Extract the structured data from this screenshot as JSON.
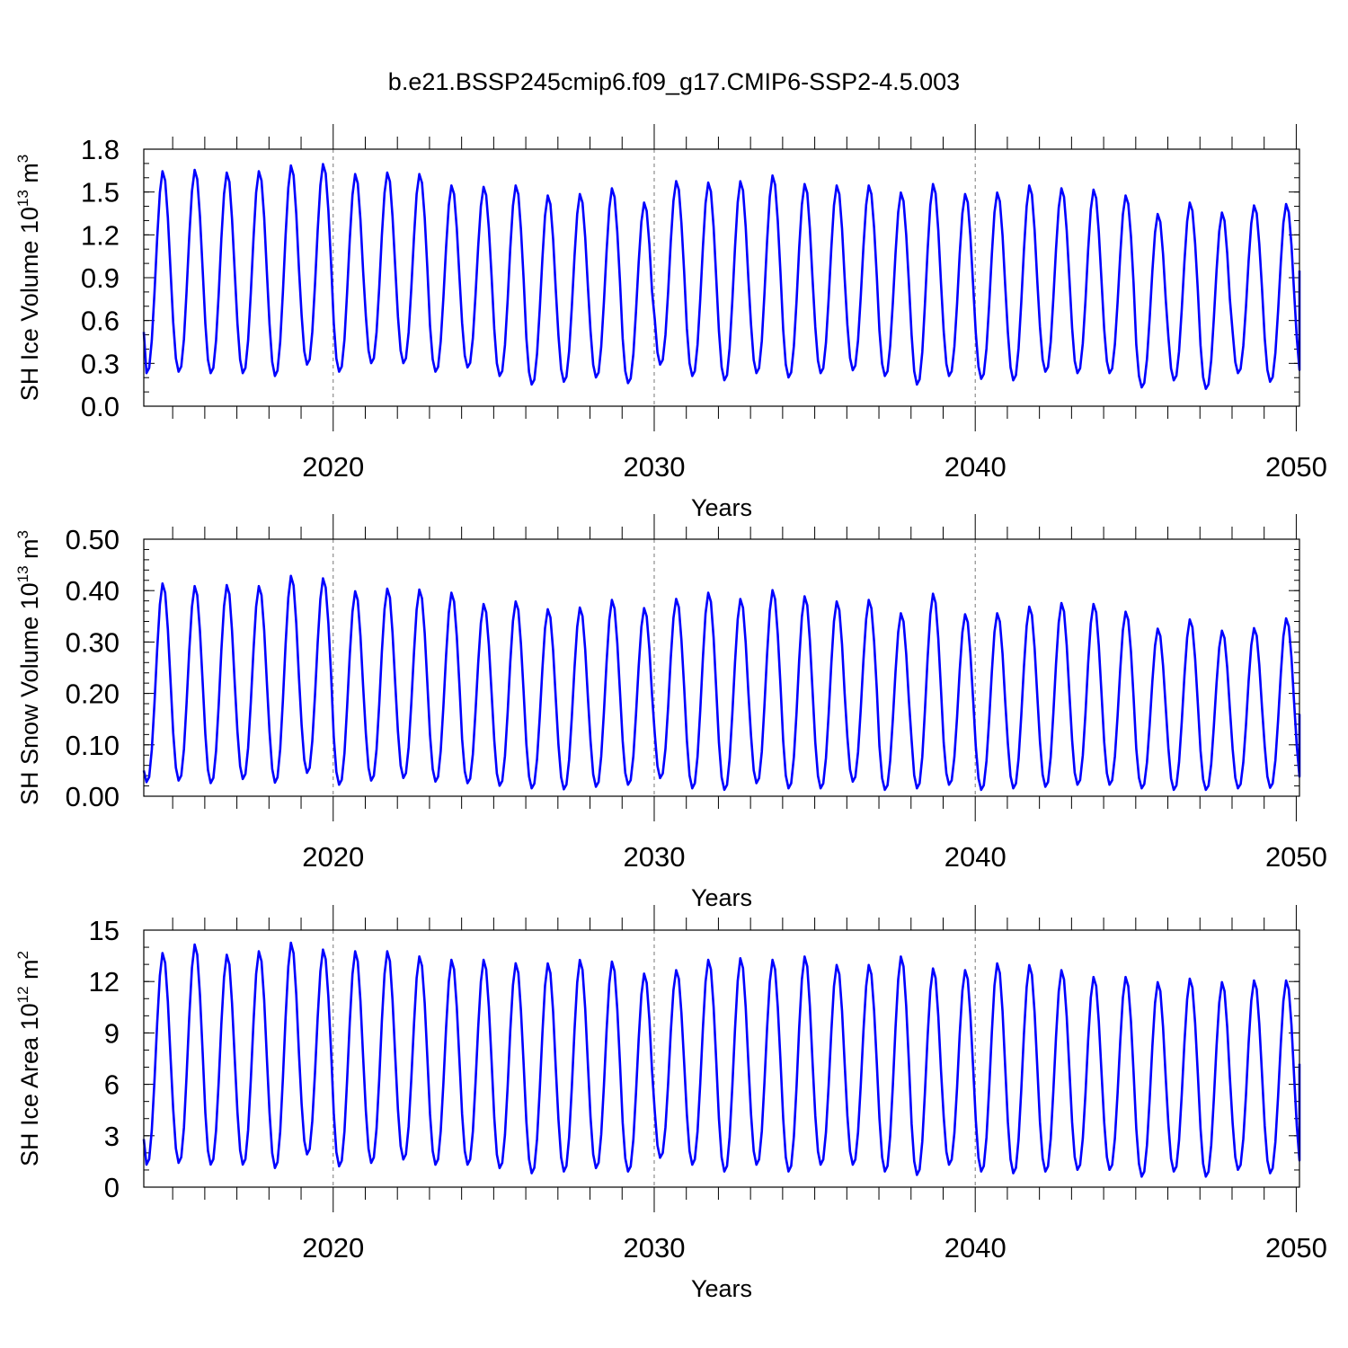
{
  "title": "b.e21.BSSP245cmip6.f09_g17.CMIP6-SSP2-4.5.003",
  "colors": {
    "series": "#0000ff",
    "axis": "#000000",
    "ref_line": "#777777"
  },
  "chart_data": [
    {
      "type": "line",
      "name": "ice-volume",
      "ylabel_main": "SH Ice Volume 10",
      "ylabel_exp": "13",
      "ylabel_unit": "m",
      "ylabel_unit_exp": "3",
      "xlabel": "Years",
      "xlim": [
        2014.1,
        2050.1
      ],
      "ylim": [
        0,
        1.8
      ],
      "yticks": [
        0,
        0.3,
        0.6,
        0.9,
        1.2,
        1.5,
        1.8
      ],
      "ytick_labels": [
        "0.0",
        "0.3",
        "0.6",
        "0.9",
        "1.2",
        "1.5",
        "1.8"
      ],
      "yminor_step": 0.1,
      "xticks": [
        2020,
        2030,
        2040,
        2050
      ],
      "xtick_labels": [
        "2020",
        "2030",
        "2040",
        "2050"
      ],
      "ref_lines_x": [
        2020,
        2030,
        2040
      ],
      "start_value": 0.52,
      "end_value": 0.95,
      "annual_min": [
        0.23,
        0.24,
        0.23,
        0.23,
        0.21,
        0.29,
        0.24,
        0.3,
        0.3,
        0.24,
        0.27,
        0.21,
        0.15,
        0.17,
        0.2,
        0.16,
        0.29,
        0.21,
        0.18,
        0.23,
        0.2,
        0.23,
        0.25,
        0.21,
        0.15,
        0.21,
        0.19,
        0.18,
        0.24,
        0.23,
        0.23,
        0.13,
        0.18,
        0.12,
        0.23,
        0.17
      ],
      "annual_max": [
        1.65,
        1.66,
        1.64,
        1.65,
        1.69,
        1.7,
        1.63,
        1.64,
        1.63,
        1.55,
        1.54,
        1.55,
        1.48,
        1.49,
        1.53,
        1.43,
        1.58,
        1.57,
        1.58,
        1.62,
        1.56,
        1.55,
        1.55,
        1.5,
        1.56,
        1.49,
        1.5,
        1.55,
        1.53,
        1.52,
        1.48,
        1.35,
        1.43,
        1.36,
        1.41,
        1.42
      ]
    },
    {
      "type": "line",
      "name": "snow-volume",
      "ylabel_main": "SH Snow Volume 10",
      "ylabel_exp": "13",
      "ylabel_unit": "m",
      "ylabel_unit_exp": "3",
      "xlabel": "Years",
      "xlim": [
        2014.1,
        2050.1
      ],
      "ylim": [
        0,
        0.5
      ],
      "yticks": [
        0,
        0.1,
        0.2,
        0.3,
        0.4,
        0.5
      ],
      "ytick_labels": [
        "0.00",
        "0.10",
        "0.20",
        "0.30",
        "0.40",
        "0.50"
      ],
      "yminor_step": 0.02,
      "xticks": [
        2020,
        2030,
        2040,
        2050
      ],
      "xtick_labels": [
        "2020",
        "2030",
        "2040",
        "2050"
      ],
      "ref_lines_x": [
        2020,
        2030,
        2040
      ],
      "start_value": 0.05,
      "end_value": 0.16,
      "annual_min": [
        0.027,
        0.03,
        0.025,
        0.033,
        0.026,
        0.045,
        0.022,
        0.03,
        0.035,
        0.028,
        0.025,
        0.02,
        0.015,
        0.013,
        0.018,
        0.022,
        0.035,
        0.015,
        0.012,
        0.025,
        0.015,
        0.015,
        0.028,
        0.012,
        0.015,
        0.022,
        0.012,
        0.015,
        0.018,
        0.022,
        0.022,
        0.015,
        0.012,
        0.012,
        0.015,
        0.016
      ],
      "annual_max": [
        0.415,
        0.41,
        0.412,
        0.41,
        0.43,
        0.425,
        0.4,
        0.405,
        0.403,
        0.397,
        0.375,
        0.38,
        0.365,
        0.368,
        0.383,
        0.367,
        0.385,
        0.397,
        0.385,
        0.402,
        0.39,
        0.38,
        0.383,
        0.357,
        0.395,
        0.355,
        0.357,
        0.37,
        0.377,
        0.375,
        0.36,
        0.327,
        0.345,
        0.323,
        0.328,
        0.347
      ]
    },
    {
      "type": "line",
      "name": "ice-area",
      "ylabel_main": "SH Ice Area 10",
      "ylabel_exp": "12",
      "ylabel_unit": "m",
      "ylabel_unit_exp": "2",
      "xlabel": "Years",
      "xlim": [
        2014.1,
        2050.1
      ],
      "ylim": [
        0,
        15
      ],
      "yticks": [
        0,
        3,
        6,
        9,
        12,
        15
      ],
      "ytick_labels": [
        "0",
        "3",
        "6",
        "9",
        "12",
        "15"
      ],
      "yminor_step": 1,
      "xticks": [
        2020,
        2030,
        2040,
        2050
      ],
      "xtick_labels": [
        "2020",
        "2030",
        "2040",
        "2050"
      ],
      "ref_lines_x": [
        2020,
        2030,
        2040
      ],
      "start_value": 2.8,
      "end_value": 7.2,
      "annual_min": [
        1.3,
        1.4,
        1.3,
        1.3,
        1.1,
        1.9,
        1.2,
        1.4,
        1.6,
        1.3,
        1.3,
        1.1,
        0.8,
        0.9,
        1.1,
        0.9,
        1.7,
        1.3,
        0.9,
        1.3,
        0.9,
        1.3,
        1.3,
        0.9,
        0.7,
        1.3,
        0.9,
        0.8,
        0.9,
        1.0,
        1.0,
        0.6,
        0.9,
        0.6,
        1.0,
        0.8
      ],
      "annual_max": [
        13.7,
        14.2,
        13.6,
        13.8,
        14.3,
        13.9,
        13.8,
        13.8,
        13.5,
        13.3,
        13.3,
        13.1,
        13.1,
        13.3,
        13.2,
        12.5,
        12.7,
        13.3,
        13.4,
        13.3,
        13.5,
        13.0,
        13.0,
        13.5,
        12.8,
        12.7,
        13.1,
        13.0,
        12.7,
        12.3,
        12.3,
        12.0,
        12.2,
        12.0,
        12.1,
        12.1
      ]
    }
  ]
}
